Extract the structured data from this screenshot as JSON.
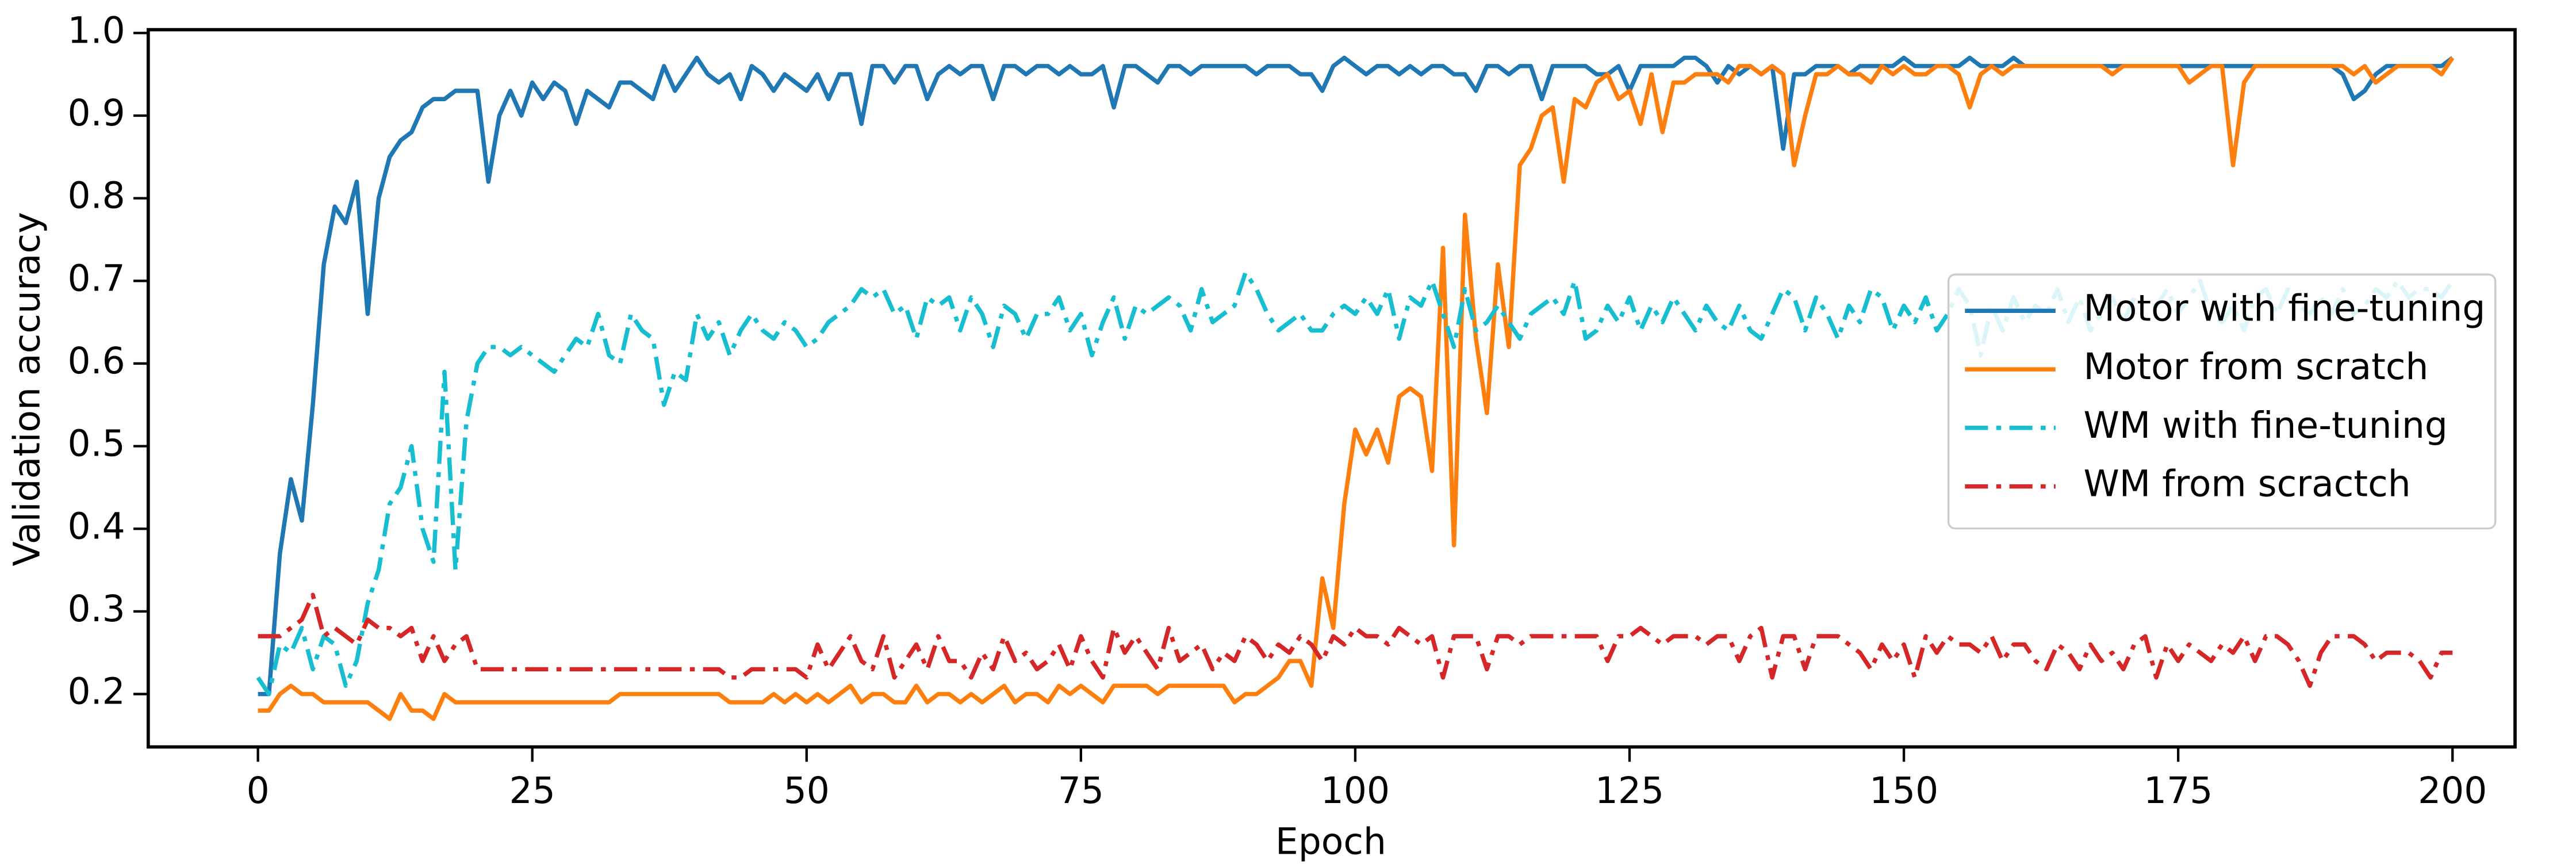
{
  "chart_data": {
    "type": "line",
    "xlabel": "Epoch",
    "ylabel": "Validation accuracy",
    "xlim": [
      -10,
      205.7
    ],
    "ylim": [
      0.136,
      1.004
    ],
    "xticks": [
      0,
      25,
      50,
      75,
      100,
      125,
      150,
      175,
      200
    ],
    "yticks": [
      0.2,
      0.3,
      0.4,
      0.5,
      0.6,
      0.7,
      0.8,
      0.9,
      {
        "value": 1.0,
        "label": "1.0"
      }
    ],
    "legend": "center right",
    "x": [
      0,
      1,
      2,
      3,
      4,
      5,
      6,
      7,
      8,
      9,
      10,
      11,
      12,
      13,
      14,
      15,
      16,
      17,
      18,
      19,
      20,
      21,
      22,
      23,
      24,
      25,
      26,
      27,
      28,
      29,
      30,
      31,
      32,
      33,
      34,
      35,
      36,
      37,
      38,
      39,
      40,
      41,
      42,
      43,
      44,
      45,
      46,
      47,
      48,
      49,
      50,
      51,
      52,
      53,
      54,
      55,
      56,
      57,
      58,
      59,
      60,
      61,
      62,
      63,
      64,
      65,
      66,
      67,
      68,
      69,
      70,
      71,
      72,
      73,
      74,
      75,
      76,
      77,
      78,
      79,
      80,
      81,
      82,
      83,
      84,
      85,
      86,
      87,
      88,
      89,
      90,
      91,
      92,
      93,
      94,
      95,
      96,
      97,
      98,
      99,
      100,
      101,
      102,
      103,
      104,
      105,
      106,
      107,
      108,
      109,
      110,
      111,
      112,
      113,
      114,
      115,
      116,
      117,
      118,
      119,
      120,
      121,
      122,
      123,
      124,
      125,
      126,
      127,
      128,
      129,
      130,
      131,
      132,
      133,
      134,
      135,
      136,
      137,
      138,
      139,
      140,
      141,
      142,
      143,
      144,
      145,
      146,
      147,
      148,
      149,
      150,
      151,
      152,
      153,
      154,
      155,
      156,
      157,
      158,
      159,
      160,
      161,
      162,
      163,
      164,
      165,
      166,
      167,
      168,
      169,
      170,
      171,
      172,
      173,
      174,
      175,
      176,
      177,
      178,
      179,
      180,
      181,
      182,
      183,
      184,
      185,
      186,
      187,
      188,
      189,
      190,
      191,
      192,
      193,
      194,
      195,
      196,
      197,
      198,
      199,
      200
    ],
    "series": [
      {
        "name": "Motor with fine-tuning",
        "color": "#1f77b4",
        "style": "solid",
        "values": [
          0.2,
          0.2,
          0.37,
          0.46,
          0.41,
          0.55,
          0.72,
          0.79,
          0.77,
          0.82,
          0.66,
          0.8,
          0.85,
          0.87,
          0.88,
          0.91,
          0.92,
          0.92,
          0.93,
          0.93,
          0.93,
          0.82,
          0.9,
          0.93,
          0.9,
          0.94,
          0.92,
          0.94,
          0.93,
          0.89,
          0.93,
          0.92,
          0.91,
          0.94,
          0.94,
          0.93,
          0.92,
          0.96,
          0.93,
          0.95,
          0.97,
          0.95,
          0.94,
          0.95,
          0.92,
          0.96,
          0.95,
          0.93,
          0.95,
          0.94,
          0.93,
          0.95,
          0.92,
          0.95,
          0.95,
          0.89,
          0.96,
          0.96,
          0.94,
          0.96,
          0.96,
          0.92,
          0.95,
          0.96,
          0.95,
          0.96,
          0.96,
          0.92,
          0.96,
          0.96,
          0.95,
          0.96,
          0.96,
          0.95,
          0.96,
          0.95,
          0.95,
          0.96,
          0.91,
          0.96,
          0.96,
          0.95,
          0.94,
          0.96,
          0.96,
          0.95,
          0.96,
          0.96,
          0.96,
          0.96,
          0.96,
          0.95,
          0.96,
          0.96,
          0.96,
          0.95,
          0.95,
          0.93,
          0.96,
          0.97,
          0.96,
          0.95,
          0.96,
          0.96,
          0.95,
          0.96,
          0.95,
          0.96,
          0.96,
          0.95,
          0.95,
          0.93,
          0.96,
          0.96,
          0.95,
          0.96,
          0.96,
          0.92,
          0.96,
          0.96,
          0.96,
          0.96,
          0.95,
          0.95,
          0.96,
          0.93,
          0.96,
          0.96,
          0.96,
          0.96,
          0.97,
          0.97,
          0.96,
          0.94,
          0.96,
          0.95,
          0.96,
          0.95,
          0.96,
          0.86,
          0.95,
          0.95,
          0.96,
          0.96,
          0.96,
          0.95,
          0.96,
          0.96,
          0.96,
          0.96,
          0.97,
          0.96,
          0.96,
          0.96,
          0.96,
          0.96,
          0.97,
          0.96,
          0.96,
          0.96,
          0.97,
          0.96,
          0.96,
          0.96,
          0.96,
          0.96,
          0.96,
          0.96,
          0.96,
          0.96,
          0.96,
          0.96,
          0.96,
          0.96,
          0.96,
          0.96,
          0.96,
          0.96,
          0.96,
          0.96,
          0.96,
          0.96,
          0.96,
          0.96,
          0.96,
          0.96,
          0.96,
          0.96,
          0.96,
          0.96,
          0.95,
          0.92,
          0.93,
          0.95,
          0.96,
          0.96,
          0.96,
          0.96,
          0.96,
          0.96,
          0.97
        ]
      },
      {
        "name": "Motor from scratch",
        "color": "#ff7f0e",
        "style": "solid",
        "values": [
          0.18,
          0.18,
          0.2,
          0.21,
          0.2,
          0.2,
          0.19,
          0.19,
          0.19,
          0.19,
          0.19,
          0.18,
          0.17,
          0.2,
          0.18,
          0.18,
          0.17,
          0.2,
          0.19,
          0.19,
          0.19,
          0.19,
          0.19,
          0.19,
          0.19,
          0.19,
          0.19,
          0.19,
          0.19,
          0.19,
          0.19,
          0.19,
          0.19,
          0.2,
          0.2,
          0.2,
          0.2,
          0.2,
          0.2,
          0.2,
          0.2,
          0.2,
          0.2,
          0.19,
          0.19,
          0.19,
          0.19,
          0.2,
          0.19,
          0.2,
          0.19,
          0.2,
          0.19,
          0.2,
          0.21,
          0.19,
          0.2,
          0.2,
          0.19,
          0.19,
          0.21,
          0.19,
          0.2,
          0.2,
          0.19,
          0.2,
          0.19,
          0.2,
          0.21,
          0.19,
          0.2,
          0.2,
          0.19,
          0.21,
          0.2,
          0.21,
          0.2,
          0.19,
          0.21,
          0.21,
          0.21,
          0.21,
          0.2,
          0.21,
          0.21,
          0.21,
          0.21,
          0.21,
          0.21,
          0.19,
          0.2,
          0.2,
          0.21,
          0.22,
          0.24,
          0.24,
          0.21,
          0.34,
          0.28,
          0.43,
          0.52,
          0.49,
          0.52,
          0.48,
          0.56,
          0.57,
          0.56,
          0.47,
          0.74,
          0.38,
          0.78,
          0.63,
          0.54,
          0.72,
          0.62,
          0.84,
          0.86,
          0.9,
          0.91,
          0.82,
          0.92,
          0.91,
          0.94,
          0.95,
          0.92,
          0.93,
          0.89,
          0.95,
          0.88,
          0.94,
          0.94,
          0.95,
          0.95,
          0.95,
          0.94,
          0.96,
          0.96,
          0.95,
          0.96,
          0.95,
          0.84,
          0.9,
          0.95,
          0.95,
          0.96,
          0.95,
          0.95,
          0.94,
          0.96,
          0.95,
          0.96,
          0.95,
          0.95,
          0.96,
          0.96,
          0.95,
          0.91,
          0.95,
          0.96,
          0.95,
          0.96,
          0.96,
          0.96,
          0.96,
          0.96,
          0.96,
          0.96,
          0.96,
          0.96,
          0.95,
          0.96,
          0.96,
          0.96,
          0.96,
          0.96,
          0.96,
          0.94,
          0.95,
          0.96,
          0.96,
          0.84,
          0.94,
          0.96,
          0.96,
          0.96,
          0.96,
          0.96,
          0.96,
          0.96,
          0.96,
          0.96,
          0.95,
          0.96,
          0.94,
          0.95,
          0.96,
          0.96,
          0.96,
          0.96,
          0.95,
          0.97
        ]
      },
      {
        "name": "WM with fine-tuning",
        "color": "#17becf",
        "style": "dashdot",
        "values": [
          0.22,
          0.2,
          0.26,
          0.25,
          0.28,
          0.23,
          0.27,
          0.26,
          0.21,
          0.24,
          0.31,
          0.35,
          0.43,
          0.45,
          0.5,
          0.4,
          0.36,
          0.59,
          0.35,
          0.53,
          0.6,
          0.62,
          0.62,
          0.61,
          0.62,
          0.61,
          0.6,
          0.59,
          0.61,
          0.63,
          0.62,
          0.66,
          0.61,
          0.6,
          0.66,
          0.64,
          0.63,
          0.55,
          0.59,
          0.58,
          0.66,
          0.63,
          0.65,
          0.61,
          0.64,
          0.66,
          0.64,
          0.63,
          0.65,
          0.64,
          0.62,
          0.63,
          0.65,
          0.66,
          0.67,
          0.69,
          0.68,
          0.69,
          0.66,
          0.67,
          0.63,
          0.68,
          0.67,
          0.68,
          0.64,
          0.68,
          0.66,
          0.62,
          0.67,
          0.66,
          0.63,
          0.66,
          0.66,
          0.68,
          0.64,
          0.66,
          0.61,
          0.65,
          0.68,
          0.63,
          0.67,
          0.66,
          0.67,
          0.68,
          0.67,
          0.64,
          0.69,
          0.65,
          0.66,
          0.67,
          0.71,
          0.69,
          0.66,
          0.64,
          0.65,
          0.66,
          0.64,
          0.64,
          0.66,
          0.67,
          0.66,
          0.68,
          0.66,
          0.69,
          0.63,
          0.68,
          0.67,
          0.7,
          0.66,
          0.62,
          0.69,
          0.64,
          0.65,
          0.67,
          0.65,
          0.63,
          0.66,
          0.67,
          0.68,
          0.66,
          0.7,
          0.63,
          0.64,
          0.67,
          0.65,
          0.68,
          0.64,
          0.67,
          0.65,
          0.68,
          0.66,
          0.64,
          0.67,
          0.65,
          0.64,
          0.67,
          0.64,
          0.63,
          0.66,
          0.69,
          0.68,
          0.64,
          0.68,
          0.66,
          0.63,
          0.67,
          0.65,
          0.69,
          0.68,
          0.64,
          0.67,
          0.65,
          0.68,
          0.64,
          0.66,
          0.69,
          0.67,
          0.61,
          0.67,
          0.64,
          0.68,
          0.65,
          0.67,
          0.66,
          0.69,
          0.65,
          0.68,
          0.64,
          0.66,
          0.68,
          0.65,
          0.68,
          0.67,
          0.67,
          0.69,
          0.66,
          0.68,
          0.7,
          0.66,
          0.65,
          0.67,
          0.64,
          0.68,
          0.69,
          0.66,
          0.69,
          0.67,
          0.66,
          0.68,
          0.66,
          0.69,
          0.66,
          0.67,
          0.69,
          0.68,
          0.7,
          0.68,
          0.69,
          0.69,
          0.68,
          0.7
        ]
      },
      {
        "name": "WM from scractch",
        "color": "#d62728",
        "style": "dashdot",
        "values": [
          0.27,
          0.27,
          0.27,
          0.28,
          0.29,
          0.32,
          0.27,
          0.28,
          0.27,
          0.26,
          0.29,
          0.28,
          0.28,
          0.27,
          0.28,
          0.24,
          0.27,
          0.24,
          0.26,
          0.27,
          0.23,
          0.23,
          0.23,
          0.23,
          0.23,
          0.23,
          0.23,
          0.23,
          0.23,
          0.23,
          0.23,
          0.23,
          0.23,
          0.23,
          0.23,
          0.23,
          0.23,
          0.23,
          0.23,
          0.23,
          0.23,
          0.23,
          0.23,
          0.22,
          0.22,
          0.23,
          0.23,
          0.23,
          0.23,
          0.23,
          0.22,
          0.26,
          0.23,
          0.25,
          0.27,
          0.24,
          0.23,
          0.27,
          0.22,
          0.24,
          0.26,
          0.23,
          0.27,
          0.24,
          0.24,
          0.22,
          0.25,
          0.23,
          0.27,
          0.24,
          0.25,
          0.23,
          0.24,
          0.26,
          0.23,
          0.27,
          0.24,
          0.22,
          0.28,
          0.25,
          0.27,
          0.25,
          0.23,
          0.28,
          0.24,
          0.25,
          0.26,
          0.23,
          0.25,
          0.24,
          0.27,
          0.26,
          0.24,
          0.26,
          0.25,
          0.27,
          0.26,
          0.24,
          0.27,
          0.26,
          0.28,
          0.27,
          0.27,
          0.26,
          0.28,
          0.27,
          0.26,
          0.27,
          0.22,
          0.27,
          0.27,
          0.27,
          0.23,
          0.27,
          0.27,
          0.26,
          0.27,
          0.27,
          0.27,
          0.27,
          0.27,
          0.27,
          0.27,
          0.24,
          0.27,
          0.27,
          0.28,
          0.27,
          0.26,
          0.27,
          0.27,
          0.27,
          0.26,
          0.27,
          0.27,
          0.24,
          0.27,
          0.28,
          0.22,
          0.27,
          0.27,
          0.23,
          0.27,
          0.27,
          0.27,
          0.26,
          0.25,
          0.23,
          0.26,
          0.24,
          0.26,
          0.22,
          0.27,
          0.25,
          0.27,
          0.26,
          0.26,
          0.25,
          0.27,
          0.24,
          0.26,
          0.26,
          0.24,
          0.23,
          0.26,
          0.25,
          0.23,
          0.26,
          0.24,
          0.25,
          0.23,
          0.26,
          0.27,
          0.22,
          0.26,
          0.24,
          0.26,
          0.25,
          0.24,
          0.26,
          0.25,
          0.27,
          0.24,
          0.27,
          0.27,
          0.26,
          0.24,
          0.21,
          0.25,
          0.27,
          0.27,
          0.27,
          0.26,
          0.24,
          0.25,
          0.25,
          0.25,
          0.24,
          0.22,
          0.25,
          0.25
        ]
      }
    ]
  }
}
